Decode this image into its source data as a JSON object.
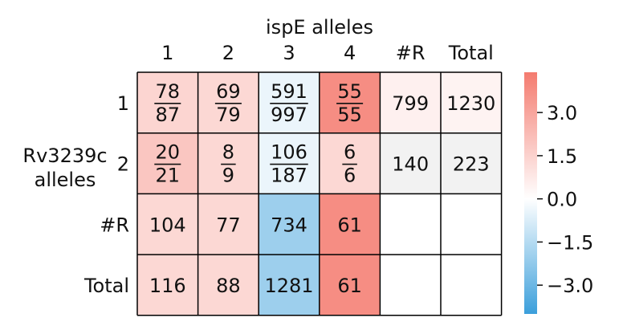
{
  "chart_data": {
    "type": "heatmap",
    "title": "ispE alleles",
    "xlabel": "ispE alleles",
    "ylabel": "Rv3239c\nalleles",
    "columns": [
      "1",
      "2",
      "3",
      "4",
      "#R",
      "Total"
    ],
    "rows": [
      "1",
      "2",
      "#R",
      "Total"
    ],
    "cells": [
      [
        {
          "kind": "fraction",
          "num": "78",
          "den": "87",
          "color_value": 1.4
        },
        {
          "kind": "fraction",
          "num": "69",
          "den": "79",
          "color_value": 1.3
        },
        {
          "kind": "fraction",
          "num": "591",
          "den": "997",
          "color_value": -0.4
        },
        {
          "kind": "fraction",
          "num": "55",
          "den": "55",
          "color_value": 3.8
        },
        {
          "kind": "number",
          "text": "799",
          "color_value": 0.5
        },
        {
          "kind": "number",
          "text": "1230",
          "color_value": 0.4
        }
      ],
      [
        {
          "kind": "fraction",
          "num": "20",
          "den": "21",
          "color_value": 1.9
        },
        {
          "kind": "fraction",
          "num": "8",
          "den": "9",
          "color_value": 1.3
        },
        {
          "kind": "fraction",
          "num": "106",
          "den": "187",
          "color_value": -0.4
        },
        {
          "kind": "fraction",
          "num": "6",
          "den": "6",
          "color_value": 1.3
        },
        {
          "kind": "number",
          "text": "140",
          "color_value": 0.05
        },
        {
          "kind": "number",
          "text": "223",
          "color_value": 0.05
        }
      ],
      [
        {
          "kind": "number",
          "text": "104",
          "color_value": 1.3
        },
        {
          "kind": "number",
          "text": "77",
          "color_value": 1.3
        },
        {
          "kind": "number",
          "text": "734",
          "color_value": -2.0
        },
        {
          "kind": "number",
          "text": "61",
          "color_value": 3.8
        },
        {
          "kind": "empty",
          "color_value": null
        },
        {
          "kind": "empty",
          "color_value": null
        }
      ],
      [
        {
          "kind": "number",
          "text": "116",
          "color_value": 1.3
        },
        {
          "kind": "number",
          "text": "88",
          "color_value": 1.3
        },
        {
          "kind": "number",
          "text": "1281",
          "color_value": -2.0
        },
        {
          "kind": "number",
          "text": "61",
          "color_value": 3.8
        },
        {
          "kind": "empty",
          "color_value": null
        },
        {
          "kind": "empty",
          "color_value": null
        }
      ]
    ],
    "colorbar": {
      "ticks": [
        3.0,
        1.5,
        0.0,
        -1.5,
        -3.0
      ],
      "tick_labels": [
        "3.0",
        "1.5",
        "0.0",
        "−1.5",
        "−3.0"
      ],
      "vmin": -4.0,
      "vmax": 4.4,
      "colors": {
        "negative": "#3b9fdb",
        "center": "#ffffff",
        "positive": "#f47b6f",
        "empty": "#ffffff",
        "neutral": "#f2f2f2"
      }
    },
    "grid": true,
    "legend": "right"
  }
}
